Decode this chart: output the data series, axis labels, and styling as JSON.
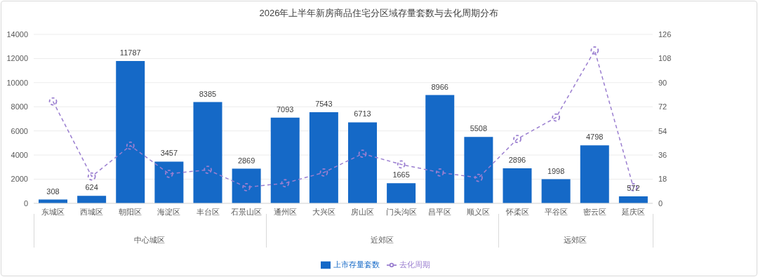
{
  "chart_data": {
    "type": "bar",
    "title": "2026年上半年新房商品住宅分区域存量套数与去化周期分布",
    "categories": [
      "东城区",
      "西城区",
      "朝阳区",
      "海淀区",
      "丰台区",
      "石景山区",
      "通州区",
      "大兴区",
      "房山区",
      "门头沟区",
      "昌平区",
      "顺义区",
      "怀柔区",
      "平谷区",
      "密云区",
      "延庆区"
    ],
    "series": [
      {
        "name": "上市存量套数",
        "color": "#1569c7",
        "values": [
          308,
          624,
          11787,
          3457,
          8385,
          2869,
          7093,
          7543,
          6713,
          1665,
          8966,
          5508,
          2896,
          1998,
          4798,
          572
        ],
        "value_labels": [
          "308",
          "624",
          "11787",
          "3457",
          "8385",
          "2869",
          "7093",
          "7543",
          "6713",
          "1665",
          "8966",
          "5508",
          "2896",
          "1998",
          "4798",
          "572"
        ]
      },
      {
        "name": "去化周期",
        "type": "line",
        "axis": "y2",
        "color": "#9b7fd0",
        "marker": "circle",
        "line_style": "dashed",
        "values": [
          76,
          20,
          43,
          22,
          25,
          12,
          15,
          23,
          37,
          29,
          23,
          19,
          48,
          64,
          114,
          12
        ]
      }
    ],
    "ylim": [
      0,
      14000
    ],
    "yticks": [
      0,
      2000,
      4000,
      6000,
      8000,
      10000,
      12000,
      14000
    ],
    "y2lim": [
      0,
      126
    ],
    "y2ticks": [
      0,
      18,
      36,
      54,
      72,
      90,
      108,
      126
    ],
    "annotations": [
      "中心城区",
      "近郊区",
      "远郊区"
    ],
    "grid": "y",
    "legend": "bottom"
  }
}
